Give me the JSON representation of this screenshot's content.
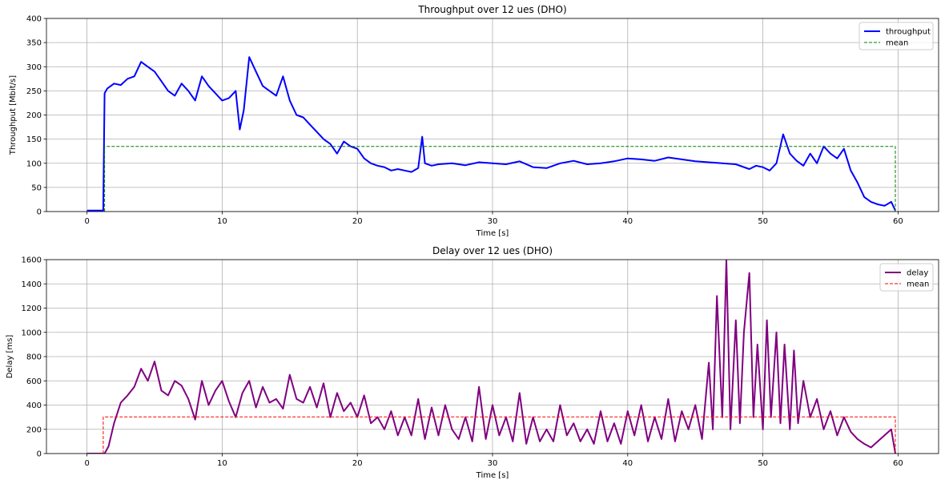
{
  "chart_data": [
    {
      "type": "line",
      "title": "Throughput over 12 ues (DHO)",
      "xlabel": "Time [s]",
      "ylabel": "Throughput [Mbit/s]",
      "xlim": [
        -3,
        63
      ],
      "ylim": [
        0,
        400
      ],
      "xticks": [
        0,
        10,
        20,
        30,
        40,
        50,
        60
      ],
      "yticks": [
        0,
        50,
        100,
        150,
        200,
        250,
        300,
        350,
        400
      ],
      "grid": true,
      "legend": "top-right",
      "series": [
        {
          "name": "throughput",
          "color": "#0000ff",
          "style": "solid",
          "x": [
            0,
            0.5,
            1.0,
            1.2,
            1.3,
            1.5,
            2.0,
            2.5,
            3.0,
            3.5,
            4.0,
            4.5,
            5.0,
            5.5,
            6.0,
            6.5,
            7.0,
            7.5,
            8.0,
            8.5,
            9.0,
            9.5,
            10.0,
            10.5,
            11.0,
            11.3,
            11.6,
            12.0,
            12.5,
            13.0,
            13.5,
            14.0,
            14.5,
            15.0,
            15.5,
            16.0,
            16.5,
            17.0,
            17.5,
            18.0,
            18.5,
            19.0,
            19.5,
            20.0,
            20.5,
            21.0,
            21.5,
            22.0,
            22.5,
            23.0,
            23.5,
            24.0,
            24.5,
            24.8,
            25.0,
            25.5,
            26.0,
            27.0,
            28.0,
            29.0,
            30.0,
            31.0,
            32.0,
            33.0,
            34.0,
            35.0,
            36.0,
            37.0,
            38.0,
            39.0,
            40.0,
            41.0,
            42.0,
            43.0,
            44.0,
            45.0,
            46.0,
            47.0,
            48.0,
            49.0,
            49.5,
            50.0,
            50.5,
            51.0,
            51.5,
            52.0,
            52.5,
            53.0,
            53.5,
            54.0,
            54.5,
            55.0,
            55.5,
            56.0,
            56.5,
            57.0,
            57.5,
            58.0,
            58.5,
            59.0,
            59.5,
            59.8
          ],
          "y": [
            2,
            2,
            2,
            2,
            245,
            255,
            265,
            262,
            275,
            280,
            310,
            300,
            290,
            270,
            250,
            240,
            265,
            250,
            230,
            280,
            260,
            245,
            230,
            235,
            250,
            170,
            210,
            320,
            290,
            260,
            250,
            240,
            280,
            230,
            200,
            195,
            180,
            165,
            150,
            140,
            120,
            145,
            135,
            130,
            110,
            100,
            95,
            92,
            85,
            88,
            85,
            82,
            90,
            155,
            100,
            95,
            98,
            100,
            96,
            102,
            100,
            98,
            104,
            92,
            90,
            100,
            105,
            98,
            100,
            104,
            110,
            108,
            105,
            112,
            108,
            104,
            102,
            100,
            98,
            88,
            95,
            92,
            85,
            100,
            160,
            120,
            105,
            95,
            120,
            100,
            135,
            120,
            110,
            130,
            85,
            60,
            30,
            20,
            15,
            12,
            20,
            2
          ]
        },
        {
          "name": "mean",
          "color": "#008000",
          "style": "dashed",
          "x": [
            1.3,
            1.3,
            59.8,
            59.8
          ],
          "y": [
            0,
            135,
            135,
            0
          ]
        }
      ]
    },
    {
      "type": "line",
      "title": "Delay over 12 ues (DHO)",
      "xlabel": "Time [s]",
      "ylabel": "Delay [ms]",
      "xlim": [
        -3,
        63
      ],
      "ylim": [
        0,
        1600
      ],
      "xticks": [
        0,
        10,
        20,
        30,
        40,
        50,
        60
      ],
      "yticks": [
        0,
        200,
        400,
        600,
        800,
        1000,
        1200,
        1400,
        1600
      ],
      "grid": true,
      "legend": "top-right",
      "series": [
        {
          "name": "delay",
          "color": "#800080",
          "style": "solid",
          "x": [
            0,
            0.5,
            1.0,
            1.3,
            1.6,
            2.0,
            2.5,
            3.0,
            3.5,
            4.0,
            4.5,
            5.0,
            5.5,
            6.0,
            6.5,
            7.0,
            7.5,
            8.0,
            8.5,
            9.0,
            9.5,
            10.0,
            10.5,
            11.0,
            11.5,
            12.0,
            12.5,
            13.0,
            13.5,
            14.0,
            14.5,
            15.0,
            15.5,
            16.0,
            16.5,
            17.0,
            17.5,
            18.0,
            18.5,
            19.0,
            19.5,
            20.0,
            20.5,
            21.0,
            21.5,
            22.0,
            22.5,
            23.0,
            23.5,
            24.0,
            24.5,
            25.0,
            25.5,
            26.0,
            26.5,
            27.0,
            27.5,
            28.0,
            28.5,
            29.0,
            29.5,
            30.0,
            30.5,
            31.0,
            31.5,
            32.0,
            32.5,
            33.0,
            33.5,
            34.0,
            34.5,
            35.0,
            35.5,
            36.0,
            36.5,
            37.0,
            37.5,
            38.0,
            38.5,
            39.0,
            39.5,
            40.0,
            40.5,
            41.0,
            41.5,
            42.0,
            42.5,
            43.0,
            43.5,
            44.0,
            44.5,
            45.0,
            45.5,
            46.0,
            46.3,
            46.6,
            47.0,
            47.3,
            47.6,
            48.0,
            48.3,
            48.6,
            49.0,
            49.3,
            49.6,
            50.0,
            50.3,
            50.6,
            51.0,
            51.3,
            51.6,
            52.0,
            52.3,
            52.6,
            53.0,
            53.5,
            54.0,
            54.5,
            55.0,
            55.5,
            56.0,
            56.5,
            57.0,
            57.5,
            58.0,
            58.5,
            59.0,
            59.5,
            59.8
          ],
          "y": [
            0,
            0,
            0,
            0,
            60,
            250,
            420,
            480,
            550,
            700,
            600,
            760,
            520,
            480,
            600,
            560,
            450,
            280,
            600,
            400,
            520,
            600,
            430,
            300,
            500,
            600,
            380,
            550,
            420,
            450,
            370,
            650,
            450,
            420,
            550,
            380,
            580,
            300,
            500,
            350,
            420,
            300,
            480,
            250,
            300,
            200,
            350,
            150,
            300,
            150,
            450,
            120,
            380,
            150,
            400,
            200,
            120,
            300,
            100,
            550,
            120,
            400,
            150,
            300,
            100,
            500,
            80,
            300,
            100,
            200,
            100,
            400,
            150,
            250,
            100,
            200,
            80,
            350,
            100,
            250,
            80,
            350,
            150,
            400,
            100,
            300,
            120,
            450,
            100,
            350,
            200,
            400,
            120,
            750,
            200,
            1300,
            300,
            1600,
            200,
            1100,
            250,
            1000,
            1490,
            300,
            900,
            200,
            1100,
            300,
            1000,
            250,
            900,
            200,
            850,
            250,
            600,
            300,
            450,
            200,
            350,
            150,
            300,
            180,
            120,
            80,
            50,
            100,
            150,
            200,
            0
          ]
        },
        {
          "name": "mean",
          "color": "#ff0000",
          "style": "dashed",
          "x": [
            1.2,
            1.2,
            59.8,
            59.8
          ],
          "y": [
            0,
            302,
            302,
            0
          ]
        }
      ]
    }
  ]
}
